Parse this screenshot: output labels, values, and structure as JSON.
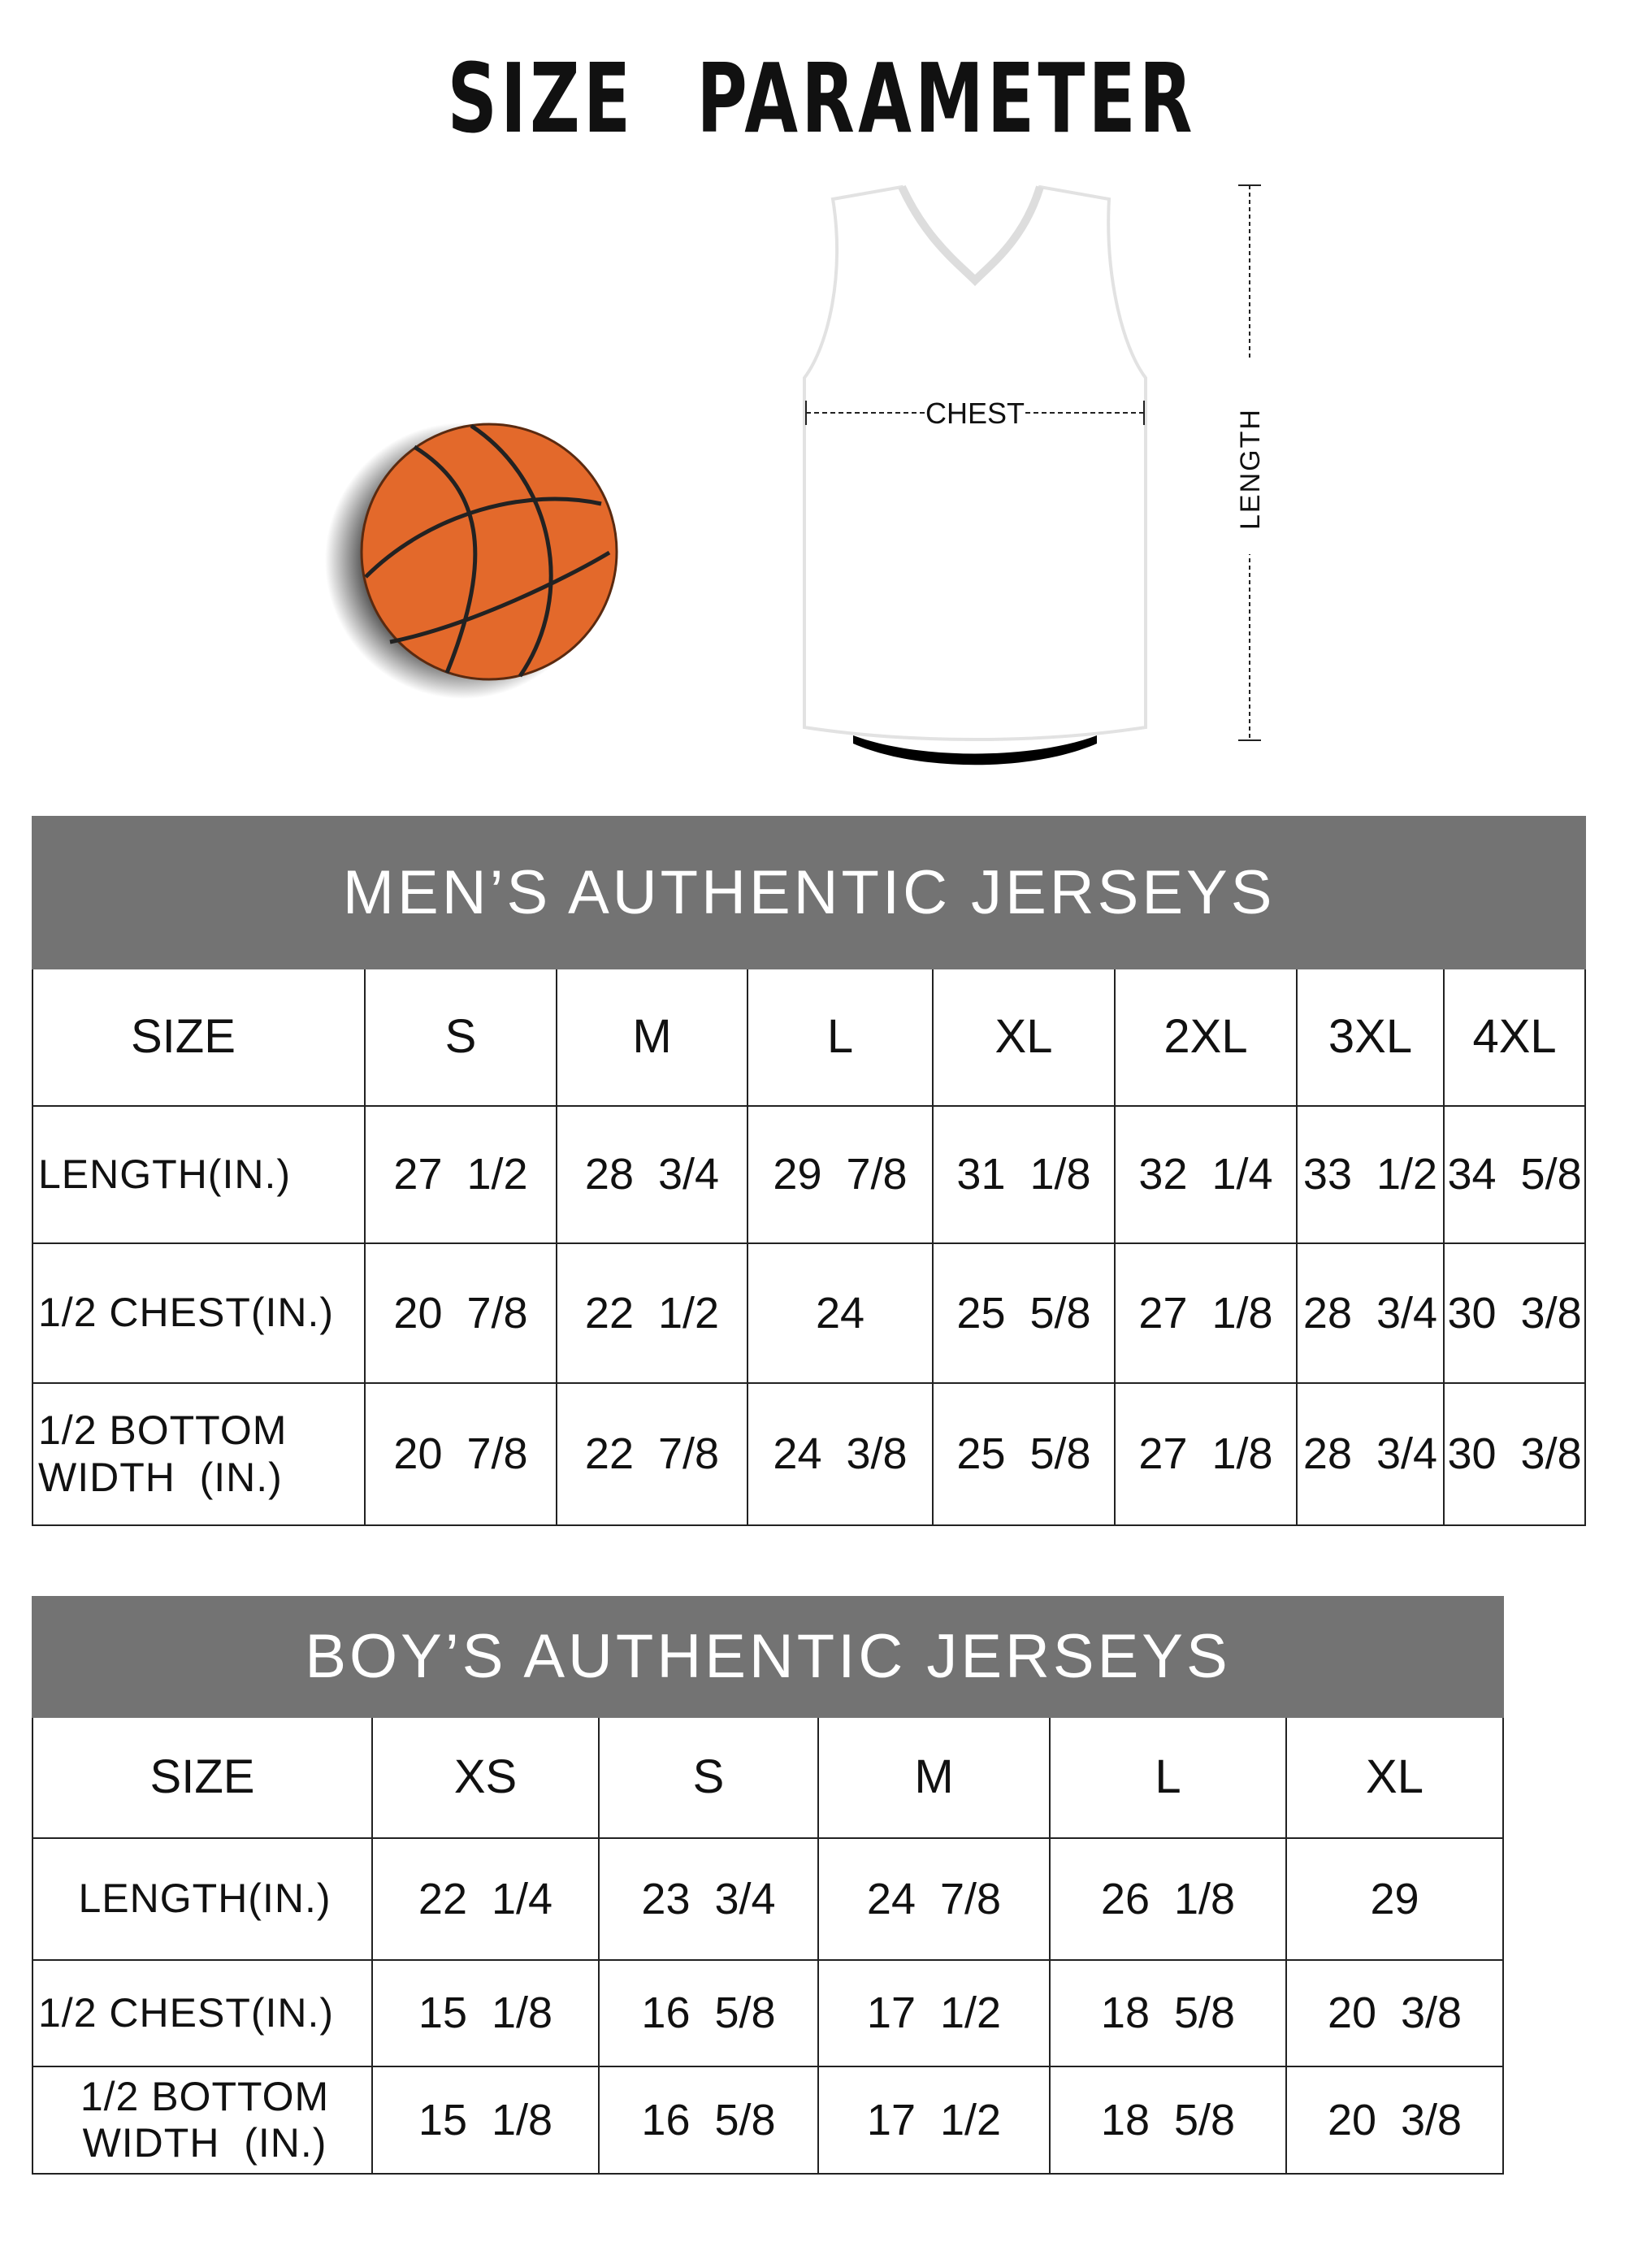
{
  "title": "SIZE PARAMETER",
  "diagram": {
    "chest_label": "CHEST",
    "length_label": "LENGTH",
    "colors": {
      "ball": "#e3692b",
      "header": "#737373"
    }
  },
  "mens": {
    "title": "MEN’S AUTHENTIC JERSEYS",
    "size_label": "SIZE",
    "sizes": [
      "S",
      "M",
      "L",
      "XL",
      "2XL",
      "3XL",
      "4XL"
    ],
    "rows": [
      {
        "label": "LENGTH(IN.)",
        "values": [
          "27  1/2",
          "28  3/4",
          "29  7/8",
          "31  1/8",
          "32  1/4",
          "33  1/2",
          "34  5/8"
        ]
      },
      {
        "label": "1/2 CHEST(IN.)",
        "values": [
          "20  7/8",
          "22  1/2",
          "24",
          "25  5/8",
          "27  1/8",
          "28  3/4",
          "30  3/8"
        ]
      },
      {
        "label": "1/2 BOTTOM WIDTH  (IN.)",
        "values": [
          "20  7/8",
          "22  7/8",
          "24  3/8",
          "25  5/8",
          "27  1/8",
          "28  3/4",
          "30  3/8"
        ]
      }
    ]
  },
  "boys": {
    "title": "BOY’S AUTHENTIC JERSEYS",
    "size_label": "SIZE",
    "sizes": [
      "XS",
      "S",
      "M",
      "L",
      "XL"
    ],
    "rows": [
      {
        "label": "LENGTH(IN.)",
        "values": [
          "22  1/4",
          "23  3/4",
          "24  7/8",
          "26  1/8",
          "29"
        ]
      },
      {
        "label": "1/2 CHEST(IN.)",
        "values": [
          "15  1/8",
          "16  5/8",
          "17  1/2",
          "18  5/8",
          "20  3/8"
        ]
      },
      {
        "label": "1/2 BOTTOM WIDTH  (IN.)",
        "values": [
          "15  1/8",
          "16  5/8",
          "17  1/2",
          "18  5/8",
          "20  3/8"
        ]
      }
    ]
  }
}
